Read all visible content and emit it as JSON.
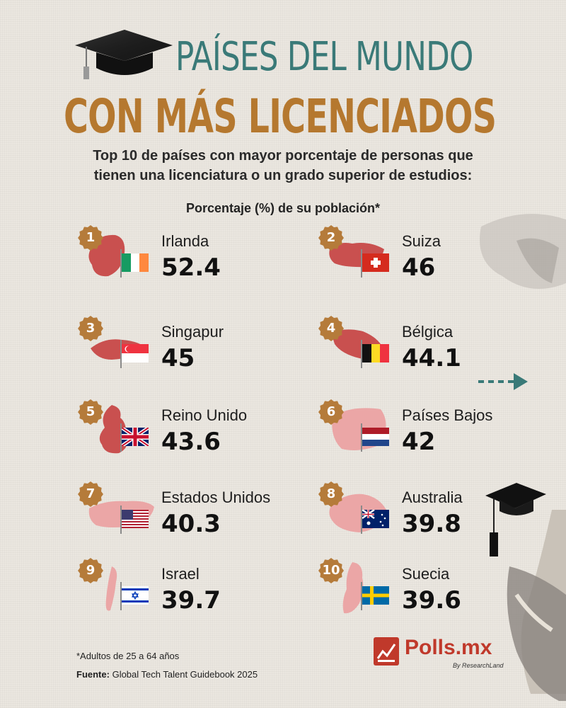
{
  "header": {
    "title_line1": "PAÍSES DEL MUNDO",
    "title_line2": "CON MÁS LICENCIADOS",
    "subtitle_line1": "Top 10 de países con mayor porcentaje de personas que",
    "subtitle_line2": "tienen una licenciatura o un grado superior de estudios:",
    "units_label": "Porcentaje (%) de su población*"
  },
  "chart_data": {
    "type": "table",
    "title": "PAÍSES DEL MUNDO CON MÁS LICENCIADOS",
    "ylabel": "Porcentaje (%) de su población*",
    "rows": [
      {
        "rank": "1",
        "country": "Irlanda",
        "value": "52.4",
        "flag": "ireland-flag-icon"
      },
      {
        "rank": "2",
        "country": "Suiza",
        "value": "46",
        "flag": "switzerland-flag-icon"
      },
      {
        "rank": "3",
        "country": "Singapur",
        "value": "45",
        "flag": "singapore-flag-icon"
      },
      {
        "rank": "4",
        "country": "Bélgica",
        "value": "44.1",
        "flag": "belgium-flag-icon"
      },
      {
        "rank": "5",
        "country": "Reino Unido",
        "value": "43.6",
        "flag": "uk-flag-icon"
      },
      {
        "rank": "6",
        "country": "Países Bajos",
        "value": "42",
        "flag": "netherlands-flag-icon"
      },
      {
        "rank": "7",
        "country": "Estados Unidos",
        "value": "40.3",
        "flag": "usa-flag-icon"
      },
      {
        "rank": "8",
        "country": "Australia",
        "value": "39.8",
        "flag": "australia-flag-icon"
      },
      {
        "rank": "9",
        "country": "Israel",
        "value": "39.7",
        "flag": "israel-flag-icon"
      },
      {
        "rank": "10",
        "country": "Suecia",
        "value": "39.6",
        "flag": "sweden-flag-icon"
      }
    ]
  },
  "footer": {
    "footnote": "*Adultos de 25 a 64 años",
    "source_label": "Fuente:",
    "source_text": "Global Tech Talent Guidebook 2025",
    "logo_text": "Polls.mx",
    "logo_sub": "By ResearchLand"
  },
  "colors": {
    "teal": "#3a7a78",
    "gold": "#b5782f",
    "badge": "#b57b3a",
    "map_dark": "#c9504f",
    "map_light": "#eba6a6",
    "logo_red": "#c0392b"
  }
}
